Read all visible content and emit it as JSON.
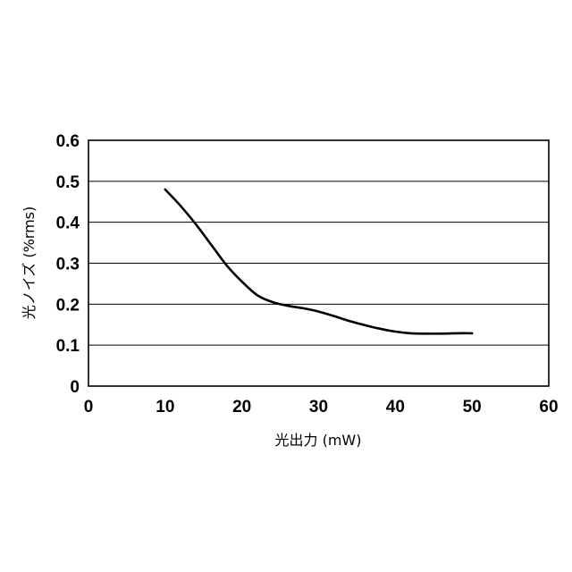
{
  "chart_data": {
    "type": "line",
    "title": "",
    "xlabel": "光出力 (mW)",
    "ylabel": "光ノイズ (%rms)",
    "xlim": [
      0,
      60
    ],
    "ylim": [
      0,
      0.6
    ],
    "x_ticks": [
      "0",
      "10",
      "20",
      "30",
      "40",
      "50",
      "60"
    ],
    "y_ticks": [
      "0",
      "0.1",
      "0.2",
      "0.3",
      "0.4",
      "0.5",
      "0.6"
    ],
    "grid": "horizontal",
    "legend": "none",
    "series": [
      {
        "x": [
          10,
          12,
          14,
          16,
          18,
          20,
          22,
          24,
          26,
          28,
          30,
          32,
          34,
          36,
          38,
          40,
          42,
          44,
          46,
          48,
          50
        ],
        "y": [
          0.48,
          0.44,
          0.395,
          0.345,
          0.295,
          0.255,
          0.222,
          0.205,
          0.196,
          0.19,
          0.182,
          0.171,
          0.159,
          0.149,
          0.14,
          0.133,
          0.129,
          0.128,
          0.128,
          0.129,
          0.129
        ],
        "color": "#000000"
      }
    ]
  }
}
